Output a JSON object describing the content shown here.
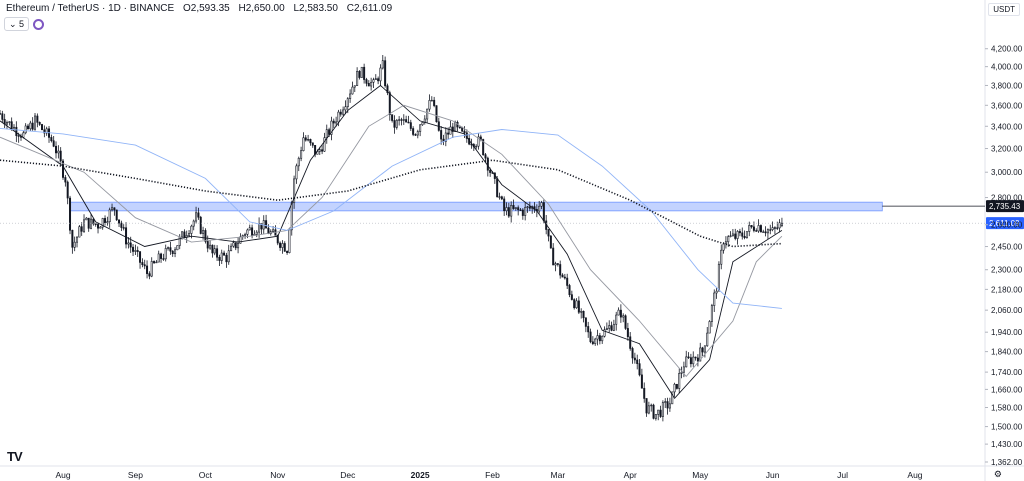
{
  "header": {
    "symbol": "Ethereum / TetherUS · 1D · BINANCE",
    "o_label": "O",
    "o_value": "2,593.35",
    "h_label": "H",
    "h_value": "2,650.00",
    "l_label": "L",
    "l_value": "2,583.50",
    "c_label": "C",
    "c_value": "2,611.09"
  },
  "indicator_count": "5",
  "currency": "USDT",
  "logo": "TV",
  "colors": {
    "candle": "#131722",
    "zone": "#2962ff",
    "ma_fast": "#131722",
    "ma_mid": "#9598a1",
    "ma_long": "#90b4f7",
    "ma_dotted": "#131722"
  },
  "chart_data": {
    "type": "candlestick",
    "symbol": "Ethereum / TetherUS",
    "interval": "1D",
    "exchange": "BINANCE",
    "ohlc_last": {
      "open": 2593.35,
      "high": 2650.0,
      "low": 2583.5,
      "close": 2611.09
    },
    "y_axis": {
      "scale": "log",
      "range": [
        1362,
        4420
      ],
      "ticks": [
        1362,
        1430,
        1500,
        1580,
        1660,
        1740,
        1840,
        1940,
        2060,
        2180,
        2300,
        2450,
        2600,
        2800,
        3000,
        3200,
        3400,
        3600,
        3800,
        4000,
        4200
      ],
      "tick_labels": [
        "1,362.00",
        "1,430.00",
        "1,500.00",
        "1,580.00",
        "1,660.00",
        "1,740.00",
        "1,840.00",
        "1,940.00",
        "2,060.00",
        "2,180.00",
        "2,300.00",
        "2,450.00",
        "2,600.00",
        "2,800.00",
        "3,000.00",
        "3,200.00",
        "3,400.00",
        "3,600.00",
        "3,800.00",
        "4,000.00",
        "4,200.00"
      ]
    },
    "x_axis": {
      "range": [
        "2024-07-05",
        "2025-08-31"
      ],
      "ticks": [
        {
          "date": "2024-08-01",
          "label": "Aug"
        },
        {
          "date": "2024-09-01",
          "label": "Sep"
        },
        {
          "date": "2024-10-01",
          "label": "Oct"
        },
        {
          "date": "2024-11-01",
          "label": "Nov"
        },
        {
          "date": "2024-12-01",
          "label": "Dec"
        },
        {
          "date": "2025-01-01",
          "label": "2025"
        },
        {
          "date": "2025-02-01",
          "label": "Feb"
        },
        {
          "date": "2025-03-01",
          "label": "Mar"
        },
        {
          "date": "2025-04-01",
          "label": "Apr"
        },
        {
          "date": "2025-05-01",
          "label": "May"
        },
        {
          "date": "2025-06-01",
          "label": "Jun"
        },
        {
          "date": "2025-07-01",
          "label": "Jul"
        },
        {
          "date": "2025-08-01",
          "label": "Aug"
        }
      ]
    },
    "price_path": [
      [
        "2024-07-05",
        3520
      ],
      [
        "2024-07-10",
        3400
      ],
      [
        "2024-07-15",
        3320
      ],
      [
        "2024-07-20",
        3450
      ],
      [
        "2024-07-28",
        3250
      ],
      [
        "2024-08-02",
        2950
      ],
      [
        "2024-08-05",
        2450
      ],
      [
        "2024-08-10",
        2620
      ],
      [
        "2024-08-16",
        2600
      ],
      [
        "2024-08-23",
        2720
      ],
      [
        "2024-08-28",
        2500
      ],
      [
        "2024-09-06",
        2280
      ],
      [
        "2024-09-12",
        2380
      ],
      [
        "2024-09-18",
        2450
      ],
      [
        "2024-09-27",
        2650
      ],
      [
        "2024-10-04",
        2400
      ],
      [
        "2024-10-10",
        2380
      ],
      [
        "2024-10-18",
        2550
      ],
      [
        "2024-10-25",
        2600
      ],
      [
        "2024-10-31",
        2510
      ],
      [
        "2024-11-05",
        2440
      ],
      [
        "2024-11-08",
        2950
      ],
      [
        "2024-11-12",
        3300
      ],
      [
        "2024-11-18",
        3150
      ],
      [
        "2024-11-24",
        3400
      ],
      [
        "2024-11-30",
        3650
      ],
      [
        "2024-12-06",
        3950
      ],
      [
        "2024-12-12",
        3800
      ],
      [
        "2024-12-16",
        4000
      ],
      [
        "2024-12-20",
        3400
      ],
      [
        "2024-12-24",
        3450
      ],
      [
        "2024-12-30",
        3350
      ],
      [
        "2025-01-06",
        3650
      ],
      [
        "2025-01-10",
        3250
      ],
      [
        "2025-01-15",
        3400
      ],
      [
        "2025-01-20",
        3300
      ],
      [
        "2025-01-27",
        3250
      ],
      [
        "2025-02-02",
        2900
      ],
      [
        "2025-02-06",
        2700
      ],
      [
        "2025-02-14",
        2700
      ],
      [
        "2025-02-22",
        2750
      ],
      [
        "2025-02-26",
        2400
      ],
      [
        "2025-03-05",
        2200
      ],
      [
        "2025-03-10",
        2050
      ],
      [
        "2025-03-15",
        1900
      ],
      [
        "2025-03-22",
        1950
      ],
      [
        "2025-03-28",
        2050
      ],
      [
        "2025-04-03",
        1800
      ],
      [
        "2025-04-08",
        1580
      ],
      [
        "2025-04-12",
        1550
      ],
      [
        "2025-04-18",
        1600
      ],
      [
        "2025-04-24",
        1780
      ],
      [
        "2025-05-02",
        1840
      ],
      [
        "2025-05-08",
        2200
      ],
      [
        "2025-05-11",
        2500
      ],
      [
        "2025-05-18",
        2520
      ],
      [
        "2025-05-25",
        2600
      ],
      [
        "2025-06-01",
        2550
      ],
      [
        "2025-06-05",
        2611
      ]
    ],
    "last_candle_date": "2025-06-05",
    "horizontal_zone": {
      "from": 2700,
      "to": 2765,
      "start": "2024-08-04",
      "end": "2025-07-18"
    },
    "horizontal_line": {
      "price": 2735.43,
      "label": "2,735.43"
    },
    "last_price_line": {
      "price": 2611.09,
      "label": "2,611.09"
    },
    "moving_averages": [
      {
        "style": "solid",
        "color": "#131722",
        "points": [
          [
            "2024-07-05",
            3450
          ],
          [
            "2024-08-01",
            3050
          ],
          [
            "2024-08-15",
            2620
          ],
          [
            "2024-09-05",
            2450
          ],
          [
            "2024-09-25",
            2520
          ],
          [
            "2024-10-15",
            2480
          ],
          [
            "2024-11-01",
            2520
          ],
          [
            "2024-11-15",
            3100
          ],
          [
            "2024-12-01",
            3550
          ],
          [
            "2024-12-15",
            3800
          ],
          [
            "2025-01-01",
            3450
          ],
          [
            "2025-01-20",
            3330
          ],
          [
            "2025-02-05",
            2900
          ],
          [
            "2025-02-20",
            2700
          ],
          [
            "2025-03-05",
            2400
          ],
          [
            "2025-03-20",
            1950
          ],
          [
            "2025-04-05",
            1880
          ],
          [
            "2025-04-20",
            1620
          ],
          [
            "2025-05-05",
            1800
          ],
          [
            "2025-05-15",
            2350
          ],
          [
            "2025-06-05",
            2560
          ]
        ]
      },
      {
        "style": "solid",
        "color": "#9598a1",
        "points": [
          [
            "2024-07-05",
            3300
          ],
          [
            "2024-08-10",
            3000
          ],
          [
            "2024-09-01",
            2650
          ],
          [
            "2024-09-25",
            2480
          ],
          [
            "2024-10-20",
            2520
          ],
          [
            "2024-11-05",
            2560
          ],
          [
            "2024-11-20",
            2800
          ],
          [
            "2024-12-10",
            3400
          ],
          [
            "2024-12-25",
            3600
          ],
          [
            "2025-01-15",
            3450
          ],
          [
            "2025-02-05",
            3150
          ],
          [
            "2025-02-25",
            2750
          ],
          [
            "2025-03-15",
            2300
          ],
          [
            "2025-04-05",
            2000
          ],
          [
            "2025-04-25",
            1720
          ],
          [
            "2025-05-15",
            2000
          ],
          [
            "2025-05-25",
            2350
          ],
          [
            "2025-06-05",
            2520
          ]
        ]
      },
      {
        "style": "solid",
        "color": "#90b4f7",
        "points": [
          [
            "2024-07-05",
            3380
          ],
          [
            "2024-08-01",
            3330
          ],
          [
            "2024-09-01",
            3230
          ],
          [
            "2024-10-01",
            2950
          ],
          [
            "2024-10-20",
            2620
          ],
          [
            "2024-11-05",
            2560
          ],
          [
            "2024-11-25",
            2700
          ],
          [
            "2024-12-20",
            3050
          ],
          [
            "2025-01-15",
            3300
          ],
          [
            "2025-02-05",
            3370
          ],
          [
            "2025-03-01",
            3320
          ],
          [
            "2025-03-20",
            3050
          ],
          [
            "2025-04-10",
            2700
          ],
          [
            "2025-04-30",
            2300
          ],
          [
            "2025-05-15",
            2100
          ],
          [
            "2025-06-05",
            2070
          ]
        ]
      },
      {
        "style": "dotted",
        "color": "#131722",
        "points": [
          [
            "2024-07-05",
            3100
          ],
          [
            "2024-08-01",
            3050
          ],
          [
            "2024-09-01",
            2950
          ],
          [
            "2024-10-01",
            2850
          ],
          [
            "2024-11-01",
            2780
          ],
          [
            "2024-12-01",
            2850
          ],
          [
            "2025-01-01",
            3020
          ],
          [
            "2025-02-01",
            3100
          ],
          [
            "2025-03-01",
            3020
          ],
          [
            "2025-04-01",
            2780
          ],
          [
            "2025-05-01",
            2520
          ],
          [
            "2025-05-15",
            2450
          ],
          [
            "2025-06-05",
            2470
          ]
        ]
      }
    ]
  }
}
